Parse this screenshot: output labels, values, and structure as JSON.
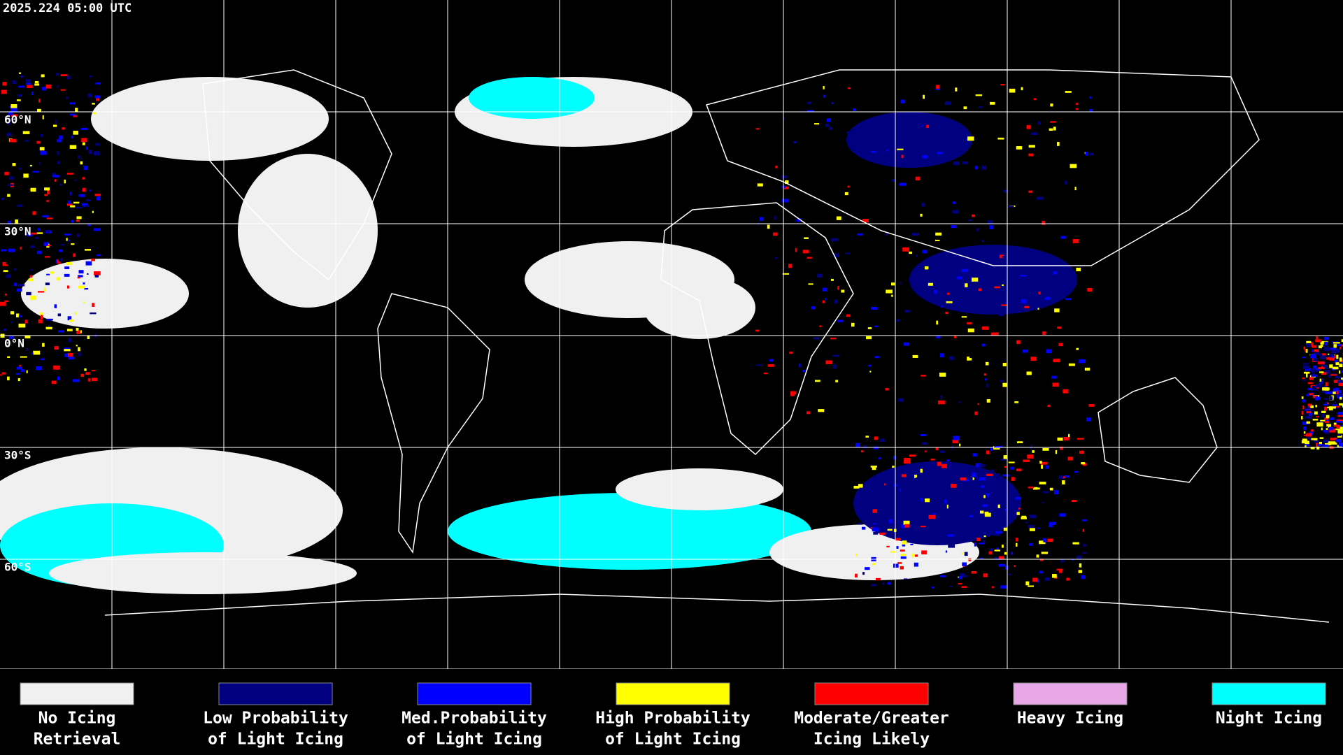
{
  "header": {
    "timestamp": "2025.224 05:00 UTC"
  },
  "map": {
    "latitude_labels": [
      "60°N",
      "30°N",
      "0°N",
      "30°S",
      "60°S"
    ]
  },
  "legend": [
    {
      "label": [
        "No Icing",
        "Retrieval"
      ],
      "color": "#f0f0f0"
    },
    {
      "label": [
        "Low Probability",
        "of Light Icing"
      ],
      "color": "#000080"
    },
    {
      "label": [
        "Med.Probability",
        "of Light Icing"
      ],
      "color": "#0000ff"
    },
    {
      "label": [
        "High Probability",
        "of Light Icing"
      ],
      "color": "#ffff00"
    },
    {
      "label": [
        "Moderate/Greater",
        "Icing Likely"
      ],
      "color": "#ff0000"
    },
    {
      "label": [
        "Heavy Icing"
      ],
      "color": "#e8a8e8"
    },
    {
      "label": [
        "Night Icing"
      ],
      "color": "#00ffff"
    }
  ]
}
